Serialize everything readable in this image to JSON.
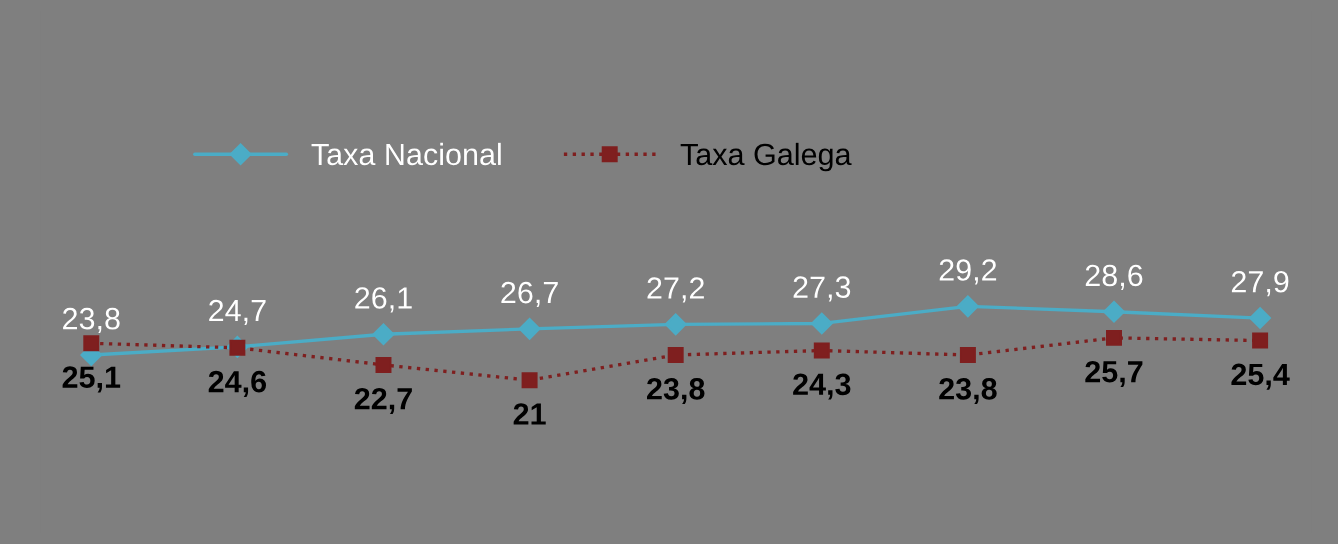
{
  "chart_data": {
    "type": "line",
    "categories": [
      null,
      null,
      null,
      null,
      null,
      null,
      null,
      null,
      null
    ],
    "series": [
      {
        "name": "Taxa Nacional",
        "color": "#4bacc6",
        "marker": "diamond",
        "line_style": "solid",
        "values": [
          23.8,
          24.7,
          26.1,
          26.7,
          27.2,
          27.3,
          29.2,
          28.6,
          27.9
        ],
        "value_labels": [
          "23,8",
          "24,7",
          "26,1",
          "26,7",
          "27,2",
          "27,3",
          "29,2",
          "28,6",
          "27,9"
        ]
      },
      {
        "name": "Taxa Galega",
        "color": "#7f1f1f",
        "marker": "square",
        "line_style": "dotted",
        "values": [
          25.1,
          24.6,
          22.7,
          21,
          23.8,
          24.3,
          23.8,
          25.7,
          25.4
        ],
        "value_labels": [
          "25,1",
          "24,6",
          "22,7",
          "21",
          "23,8",
          "24,3",
          "23,8",
          "25,7",
          "25,4"
        ]
      }
    ],
    "legend": "top left",
    "tick_labels": false
  }
}
